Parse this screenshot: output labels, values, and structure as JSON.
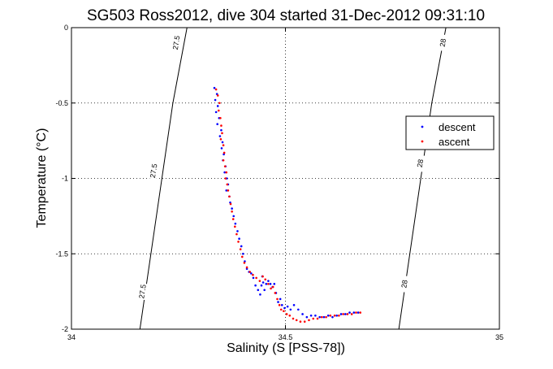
{
  "chart_data": {
    "type": "scatter",
    "title": "SG503 Ross2012, dive 304 started 31-Dec-2012 09:31:10",
    "xlabel": "Salinity (S [PSS-78])",
    "ylabel": "Temperature (°C)",
    "xlim": [
      34,
      35
    ],
    "ylim": [
      -2,
      0
    ],
    "x_ticks": [
      34,
      34.5,
      35
    ],
    "x_tick_labels": [
      "34",
      "34.5",
      "35"
    ],
    "y_ticks": [
      0,
      -0.5,
      -1,
      -1.5,
      -2
    ],
    "y_tick_labels": [
      "0",
      "-0.5",
      "-1",
      "-1.5",
      "-2"
    ],
    "grid": true,
    "grid_style": "dotted",
    "legend_position": "right",
    "density_contours": [
      {
        "value": "27.5",
        "points": [
          [
            34.16,
            -2.0
          ],
          [
            34.237,
            -0.5
          ],
          [
            34.27,
            0.0
          ]
        ],
        "labels": [
          [
            34.166,
            -1.75
          ],
          [
            34.192,
            -0.95
          ],
          [
            34.245,
            -0.1
          ]
        ]
      },
      {
        "value": "28",
        "points": [
          [
            34.765,
            -2.0
          ],
          [
            34.842,
            -0.5
          ],
          [
            34.875,
            0.0
          ]
        ],
        "labels": [
          [
            34.778,
            -1.7
          ],
          [
            34.815,
            -0.9
          ],
          [
            34.868,
            -0.1
          ]
        ]
      }
    ],
    "series": [
      {
        "name": "descent",
        "color": "#0000ff",
        "x": [
          34.334,
          34.34,
          34.336,
          34.342,
          34.338,
          34.345,
          34.341,
          34.35,
          34.347,
          34.353,
          34.351,
          34.356,
          34.354,
          34.36,
          34.358,
          34.363,
          34.366,
          34.362,
          34.369,
          34.371,
          34.375,
          34.379,
          34.383,
          34.388,
          34.392,
          34.397,
          34.401,
          34.405,
          34.41,
          34.415,
          34.42,
          34.425,
          34.43,
          34.436,
          34.441,
          34.444,
          34.446,
          34.448,
          34.451,
          34.455,
          34.46,
          34.465,
          34.47,
          34.474,
          34.478,
          34.483,
          34.488,
          34.492,
          34.498,
          34.505,
          34.512,
          34.52,
          34.53,
          34.54,
          34.55,
          34.56,
          34.57,
          34.58,
          34.59,
          34.6,
          34.61,
          34.62,
          34.63,
          34.64,
          34.65,
          34.66,
          34.67
        ],
        "y": [
          -0.4,
          -0.44,
          -0.48,
          -0.52,
          -0.56,
          -0.6,
          -0.64,
          -0.68,
          -0.72,
          -0.76,
          -0.8,
          -0.84,
          -0.88,
          -0.92,
          -0.96,
          -1.0,
          -1.04,
          -1.08,
          -1.12,
          -1.16,
          -1.2,
          -1.25,
          -1.3,
          -1.35,
          -1.4,
          -1.45,
          -1.5,
          -1.55,
          -1.6,
          -1.62,
          -1.63,
          -1.66,
          -1.71,
          -1.74,
          -1.77,
          -1.71,
          -1.65,
          -1.69,
          -1.74,
          -1.7,
          -1.68,
          -1.7,
          -1.72,
          -1.7,
          -1.76,
          -1.82,
          -1.8,
          -1.84,
          -1.86,
          -1.85,
          -1.87,
          -1.84,
          -1.87,
          -1.9,
          -1.92,
          -1.91,
          -1.91,
          -1.92,
          -1.92,
          -1.91,
          -1.92,
          -1.91,
          -1.9,
          -1.9,
          -1.89,
          -1.89,
          -1.89
        ]
      },
      {
        "name": "ascent",
        "color": "#ff0000",
        "x": [
          34.338,
          34.342,
          34.346,
          34.344,
          34.348,
          34.35,
          34.352,
          34.349,
          34.355,
          34.357,
          34.355,
          34.359,
          34.362,
          34.36,
          34.364,
          34.366,
          34.369,
          34.372,
          34.375,
          34.378,
          34.382,
          34.386,
          34.39,
          34.395,
          34.399,
          34.404,
          34.41,
          34.417,
          34.424,
          34.432,
          34.44,
          34.447,
          34.453,
          34.46,
          34.466,
          34.471,
          34.476,
          34.481,
          34.486,
          34.49,
          34.496,
          34.503,
          34.51,
          34.518,
          34.526,
          34.535,
          34.545,
          34.555,
          34.565,
          34.575,
          34.585,
          34.595,
          34.605,
          34.615,
          34.625,
          34.635,
          34.645,
          34.655,
          34.665,
          34.675
        ],
        "y": [
          -0.41,
          -0.45,
          -0.5,
          -0.55,
          -0.6,
          -0.65,
          -0.7,
          -0.74,
          -0.78,
          -0.83,
          -0.88,
          -0.92,
          -0.96,
          -1.0,
          -1.04,
          -1.08,
          -1.12,
          -1.17,
          -1.22,
          -1.27,
          -1.32,
          -1.37,
          -1.42,
          -1.47,
          -1.52,
          -1.56,
          -1.59,
          -1.62,
          -1.64,
          -1.66,
          -1.68,
          -1.65,
          -1.67,
          -1.7,
          -1.73,
          -1.72,
          -1.76,
          -1.8,
          -1.84,
          -1.87,
          -1.88,
          -1.9,
          -1.91,
          -1.93,
          -1.94,
          -1.95,
          -1.95,
          -1.94,
          -1.93,
          -1.93,
          -1.92,
          -1.92,
          -1.91,
          -1.91,
          -1.91,
          -1.9,
          -1.9,
          -1.9,
          -1.89,
          -1.89
        ]
      }
    ]
  }
}
